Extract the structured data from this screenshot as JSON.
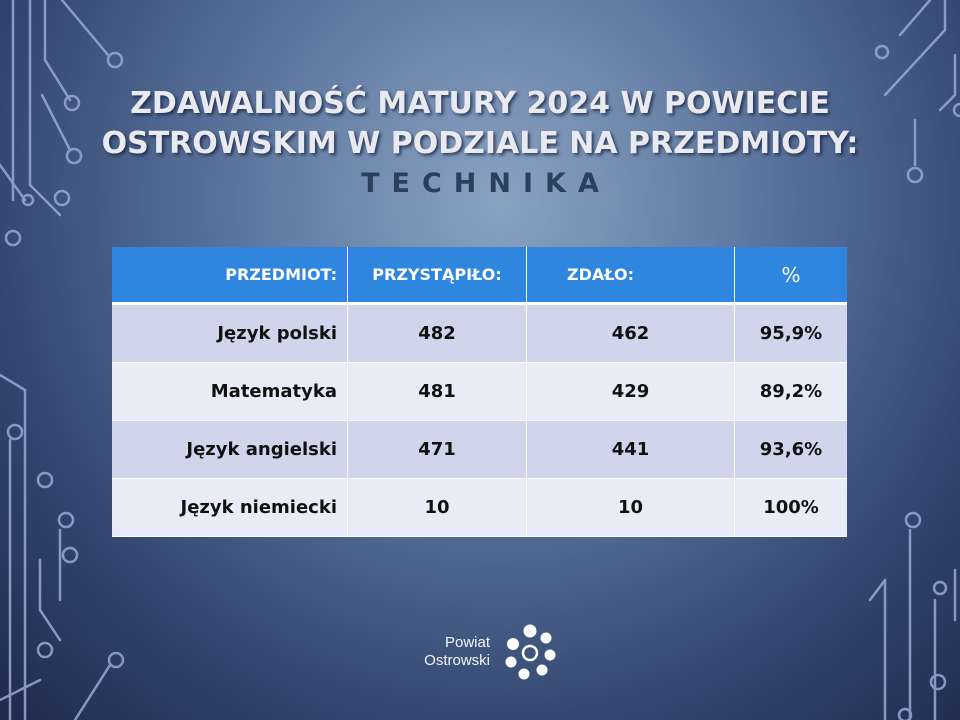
{
  "title": {
    "line1": "ZDAWALNOŚĆ MATURY 2024 W POWIECIE",
    "line2": "OSTROWSKIM W PODZIALE NA PRZEDMIOTY:",
    "subtitle": "TECHNIKA"
  },
  "table": {
    "headers": [
      "PRZEDMIOT:",
      "PRZYSTĄPIŁO:",
      "ZDAŁO:",
      "%"
    ],
    "rows": [
      {
        "subject": "Język polski",
        "took": "482",
        "passed": "462",
        "pct": "95,9%"
      },
      {
        "subject": "Matematyka",
        "took": "481",
        "passed": "429",
        "pct": "89,2%"
      },
      {
        "subject": "Język angielski",
        "took": "471",
        "passed": "441",
        "pct": "93,6%"
      },
      {
        "subject": "Język niemiecki",
        "took": "10",
        "passed": "10",
        "pct": "100%"
      }
    ]
  },
  "logo": {
    "line1": "Powiat",
    "line2": "Ostrowski"
  },
  "colors": {
    "header_blue": "#2e86de",
    "row_odd": "#cfd6ec",
    "row_even": "#e9ecf7",
    "circuit": "#8f9ed0"
  }
}
